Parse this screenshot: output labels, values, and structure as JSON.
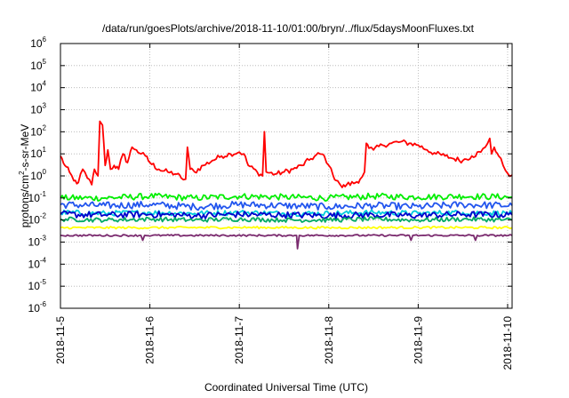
{
  "chart_data": {
    "type": "line",
    "title": "/data/run/goesPlots/archive/2018-11-10/01:00/bryn/../flux/5daysMoonFluxes.txt",
    "xlabel": "Coordinated Universal Time (UTC)",
    "ylabel_base": "protons/cm",
    "ylabel_sup": "2",
    "ylabel_tail": "-s-sr-MeV",
    "y_scale": "log",
    "ylim": [
      1e-06,
      1000000.0
    ],
    "xlim": [
      0,
      5.05
    ],
    "grid": true,
    "legend": "none",
    "x_ticks": [
      {
        "label": "2018-11-5",
        "day": 0
      },
      {
        "label": "2018-11-6",
        "day": 1
      },
      {
        "label": "2018-11-7",
        "day": 2
      },
      {
        "label": "2018-11-8",
        "day": 3
      },
      {
        "label": "2018-11-9",
        "day": 4
      },
      {
        "label": "2018-11-10",
        "day": 5
      }
    ],
    "y_ticks": [
      {
        "base": "10",
        "exp": "6",
        "value": 6
      },
      {
        "base": "10",
        "exp": "5",
        "value": 5
      },
      {
        "base": "10",
        "exp": "4",
        "value": 4
      },
      {
        "base": "10",
        "exp": "3",
        "value": 3
      },
      {
        "base": "10",
        "exp": "2",
        "value": 2
      },
      {
        "base": "10",
        "exp": "1",
        "value": 1
      },
      {
        "base": "10",
        "exp": "0",
        "value": 0
      },
      {
        "base": "10",
        "exp": "-1",
        "value": -1
      },
      {
        "base": "10",
        "exp": "-2",
        "value": -2
      },
      {
        "base": "10",
        "exp": "-3",
        "value": -3
      },
      {
        "base": "10",
        "exp": "-4",
        "value": -4
      },
      {
        "base": "10",
        "exp": "-5",
        "value": -5
      },
      {
        "base": "10",
        "exp": "-6",
        "value": -6
      }
    ],
    "series": [
      {
        "color": "#ff0000",
        "noise": 0.12,
        "points": [
          [
            0.0,
            8
          ],
          [
            0.05,
            3
          ],
          [
            0.1,
            1.5
          ],
          [
            0.15,
            0.6
          ],
          [
            0.2,
            0.5
          ],
          [
            0.25,
            2
          ],
          [
            0.3,
            0.8
          ],
          [
            0.35,
            0.4
          ],
          [
            0.38,
            2
          ],
          [
            0.42,
            1
          ],
          [
            0.44,
            300
          ],
          [
            0.47,
            200
          ],
          [
            0.5,
            3
          ],
          [
            0.53,
            15
          ],
          [
            0.56,
            2
          ],
          [
            0.6,
            3
          ],
          [
            0.65,
            2
          ],
          [
            0.7,
            10
          ],
          [
            0.75,
            4
          ],
          [
            0.8,
            20
          ],
          [
            0.85,
            15
          ],
          [
            0.9,
            10
          ],
          [
            0.95,
            8
          ],
          [
            1.0,
            4
          ],
          [
            1.1,
            2
          ],
          [
            1.2,
            1.5
          ],
          [
            1.3,
            1.2
          ],
          [
            1.35,
            0.8
          ],
          [
            1.4,
            0.7
          ],
          [
            1.42,
            20
          ],
          [
            1.45,
            2
          ],
          [
            1.5,
            1.5
          ],
          [
            1.6,
            3
          ],
          [
            1.7,
            5
          ],
          [
            1.8,
            8
          ],
          [
            1.9,
            10
          ],
          [
            2.0,
            12
          ],
          [
            2.05,
            10
          ],
          [
            2.1,
            3
          ],
          [
            2.2,
            1.5
          ],
          [
            2.26,
            1
          ],
          [
            2.28,
            100
          ],
          [
            2.3,
            1.5
          ],
          [
            2.4,
            1.2
          ],
          [
            2.5,
            1.5
          ],
          [
            2.6,
            2
          ],
          [
            2.7,
            3
          ],
          [
            2.8,
            6
          ],
          [
            2.9,
            10
          ],
          [
            2.95,
            8
          ],
          [
            3.0,
            3
          ],
          [
            3.05,
            1
          ],
          [
            3.1,
            0.6
          ],
          [
            3.15,
            0.3
          ],
          [
            3.2,
            0.4
          ],
          [
            3.3,
            0.5
          ],
          [
            3.35,
            0.7
          ],
          [
            3.4,
            1.5
          ],
          [
            3.42,
            30
          ],
          [
            3.45,
            18
          ],
          [
            3.5,
            15
          ],
          [
            3.6,
            25
          ],
          [
            3.7,
            30
          ],
          [
            3.8,
            35
          ],
          [
            3.9,
            30
          ],
          [
            4.0,
            25
          ],
          [
            4.1,
            15
          ],
          [
            4.2,
            10
          ],
          [
            4.3,
            8
          ],
          [
            4.4,
            6
          ],
          [
            4.5,
            5
          ],
          [
            4.6,
            8
          ],
          [
            4.7,
            12
          ],
          [
            4.75,
            20
          ],
          [
            4.8,
            50
          ],
          [
            4.82,
            10
          ],
          [
            4.85,
            20
          ],
          [
            4.9,
            8
          ],
          [
            4.95,
            3
          ],
          [
            5.0,
            1.3
          ],
          [
            5.05,
            1.1
          ]
        ]
      },
      {
        "color": "#00ee00",
        "noise": 0.14,
        "points": [
          [
            0.0,
            0.1
          ],
          [
            0.5,
            0.1
          ],
          [
            1.0,
            0.12
          ],
          [
            1.5,
            0.1
          ],
          [
            2.0,
            0.12
          ],
          [
            2.5,
            0.11
          ],
          [
            3.0,
            0.1
          ],
          [
            3.5,
            0.12
          ],
          [
            4.0,
            0.11
          ],
          [
            4.5,
            0.12
          ],
          [
            5.05,
            0.11
          ]
        ]
      },
      {
        "color": "#2255ee",
        "noise": 0.16,
        "points": [
          [
            0.0,
            0.05
          ],
          [
            0.5,
            0.045
          ],
          [
            1.0,
            0.05
          ],
          [
            1.5,
            0.04
          ],
          [
            2.0,
            0.05
          ],
          [
            2.5,
            0.045
          ],
          [
            3.0,
            0.04
          ],
          [
            3.5,
            0.045
          ],
          [
            4.0,
            0.04
          ],
          [
            4.5,
            0.05
          ],
          [
            5.05,
            0.045
          ]
        ]
      },
      {
        "color": "#00ccdd",
        "noise": 0.12,
        "points": [
          [
            0.0,
            0.022
          ],
          [
            0.5,
            0.02
          ],
          [
            1.0,
            0.022
          ],
          [
            1.5,
            0.02
          ],
          [
            2.0,
            0.022
          ],
          [
            2.5,
            0.02
          ],
          [
            3.0,
            0.02
          ],
          [
            3.5,
            0.022
          ],
          [
            4.0,
            0.02
          ],
          [
            4.5,
            0.022
          ],
          [
            5.05,
            0.02
          ]
        ]
      },
      {
        "color": "#0000cc",
        "noise": 0.15,
        "points": [
          [
            0.0,
            0.018
          ],
          [
            0.5,
            0.017
          ],
          [
            1.0,
            0.018
          ],
          [
            1.5,
            0.016
          ],
          [
            2.0,
            0.018
          ],
          [
            2.5,
            0.017
          ],
          [
            3.0,
            0.016
          ],
          [
            3.5,
            0.017
          ],
          [
            4.0,
            0.016
          ],
          [
            4.5,
            0.018
          ],
          [
            5.05,
            0.017
          ]
        ]
      },
      {
        "color": "#00aa66",
        "noise": 0.1,
        "points": [
          [
            0.0,
            0.011
          ],
          [
            0.5,
            0.01
          ],
          [
            1.0,
            0.011
          ],
          [
            1.5,
            0.01
          ],
          [
            2.0,
            0.011
          ],
          [
            2.5,
            0.01
          ],
          [
            3.0,
            0.01
          ],
          [
            3.5,
            0.011
          ],
          [
            4.0,
            0.01
          ],
          [
            4.5,
            0.011
          ],
          [
            5.05,
            0.01
          ]
        ]
      },
      {
        "color": "#ffff00",
        "noise": 0.05,
        "points": [
          [
            0.0,
            0.0045
          ],
          [
            1.0,
            0.0045
          ],
          [
            2.0,
            0.0046
          ],
          [
            3.0,
            0.0045
          ],
          [
            4.0,
            0.0046
          ],
          [
            5.05,
            0.0045
          ]
        ]
      },
      {
        "color": "#7a2a6e",
        "noise": 0.04,
        "points": [
          [
            0.0,
            0.002
          ],
          [
            0.9,
            0.002
          ],
          [
            0.92,
            0.0012
          ],
          [
            0.94,
            0.002
          ],
          [
            1.9,
            0.002
          ],
          [
            2.64,
            0.002
          ],
          [
            2.65,
            0.0005
          ],
          [
            2.67,
            0.002
          ],
          [
            3.9,
            0.002
          ],
          [
            3.92,
            0.0012
          ],
          [
            3.94,
            0.002
          ],
          [
            4.62,
            0.002
          ],
          [
            4.64,
            0.0012
          ],
          [
            4.66,
            0.002
          ],
          [
            5.05,
            0.002
          ]
        ]
      }
    ]
  }
}
